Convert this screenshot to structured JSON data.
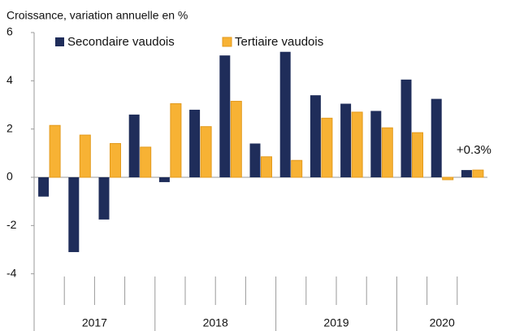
{
  "chart_data": {
    "type": "bar",
    "title": "Croissance, variation annuelle en %",
    "categories": [
      null,
      null,
      null,
      null,
      null,
      null,
      null,
      null,
      null,
      null,
      null,
      null,
      null,
      null,
      null
    ],
    "group_labels": [
      "2017",
      "2018",
      "2019",
      "2020"
    ],
    "series": [
      {
        "name": "Secondaire vaudois",
        "color": "#1f2d5a",
        "values": [
          -0.8,
          -3.1,
          -1.75,
          2.6,
          -0.2,
          2.8,
          5.05,
          1.4,
          5.2,
          3.4,
          3.05,
          2.75,
          4.05,
          3.25,
          0.3
        ]
      },
      {
        "name": "Tertiaire vaudois",
        "color": "#f7b234",
        "values": [
          2.15,
          1.75,
          1.4,
          1.25,
          3.05,
          2.1,
          3.15,
          0.85,
          0.7,
          2.45,
          2.7,
          2.05,
          1.85,
          -0.1,
          0.3
        ]
      }
    ],
    "annotation": "+0.3%",
    "ylim": [
      -6,
      6
    ],
    "yticks": [
      6,
      4,
      2,
      0,
      -2,
      -4
    ],
    "legend": "top",
    "grid": false
  }
}
